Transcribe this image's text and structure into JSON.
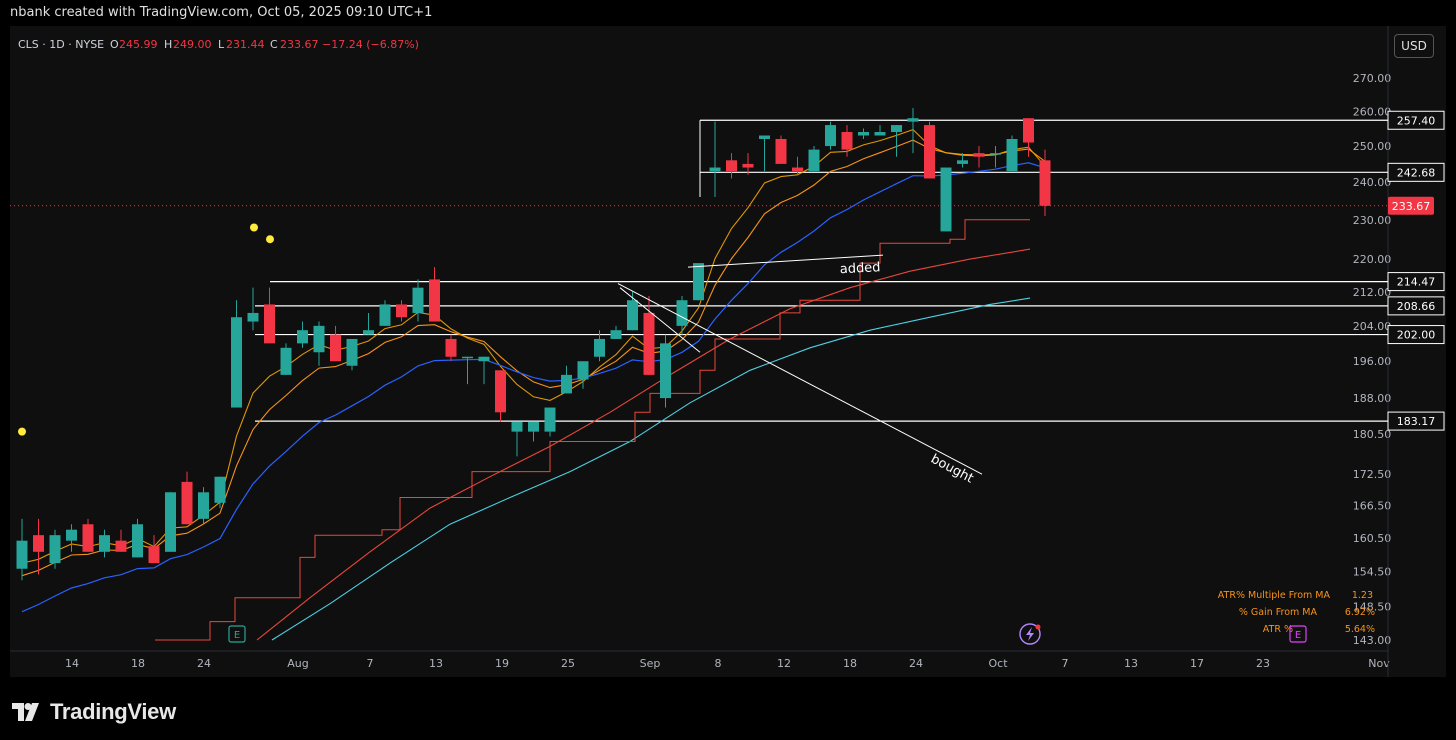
{
  "header": {
    "attribution": "nbank created with TradingView.com, Oct 05, 2025 09:10 UTC+1"
  },
  "legend": {
    "symbol": "CLS · 1D · NYSE",
    "o_label": "O",
    "o_value": "245.99",
    "h_label": "H",
    "h_value": "249.00",
    "l_label": "L",
    "l_value": "231.44",
    "c_label": "C",
    "c_value": "233.67",
    "change": "−17.24 (−6.87%)"
  },
  "currency_button": "USD",
  "footer": {
    "logo_text": "TradingView"
  },
  "colors": {
    "up": "#26a69a",
    "down": "#f23645",
    "ema_fast": "#f7a600",
    "ema_mid": "#f7931a",
    "sma": "#2962ff",
    "red_line": "#e8473b",
    "cyan_line": "#4dd0e1",
    "stop_line": "#e8473b",
    "yellow_dot": "#ffeb3b",
    "bg": "#0f0f0f"
  },
  "chart_data": {
    "type": "candlestick",
    "x_ticks": [
      "14",
      "18",
      "24",
      "Aug",
      "7",
      "13",
      "19",
      "25",
      "Sep",
      "8",
      "12",
      "18",
      "24",
      "Oct",
      "7",
      "13",
      "17",
      "23",
      "Nov"
    ],
    "y_ticks": [
      "270.00",
      "260.00",
      "250.00",
      "240.00",
      "230.00",
      "220.00",
      "212.00",
      "204.00",
      "196.00",
      "188.00",
      "180.50",
      "172.50",
      "166.50",
      "160.50",
      "154.50",
      "148.50",
      "143.00"
    ],
    "y_scale": "log",
    "last_price": "233.67",
    "horizontal_levels": [
      {
        "value": 257.4,
        "label": "257.40"
      },
      {
        "value": 242.68,
        "label": "242.68"
      },
      {
        "value": 214.47,
        "label": "214.47"
      },
      {
        "value": 208.66,
        "label": "208.66"
      },
      {
        "value": 202.0,
        "label": "202.00"
      },
      {
        "value": 183.17,
        "label": "183.17"
      }
    ],
    "annotations": [
      {
        "text": "added"
      },
      {
        "text": "bought"
      }
    ],
    "candles": [
      {
        "o": 155,
        "h": 164,
        "l": 153,
        "c": 160
      },
      {
        "o": 161,
        "h": 164,
        "l": 154,
        "c": 158
      },
      {
        "o": 156,
        "h": 162,
        "l": 155,
        "c": 161
      },
      {
        "o": 160,
        "h": 163,
        "l": 158,
        "c": 162
      },
      {
        "o": 163,
        "h": 164,
        "l": 158,
        "c": 158
      },
      {
        "o": 158,
        "h": 162,
        "l": 157,
        "c": 161
      },
      {
        "o": 160,
        "h": 162,
        "l": 158,
        "c": 158
      },
      {
        "o": 157,
        "h": 164,
        "l": 157,
        "c": 163
      },
      {
        "o": 159,
        "h": 161,
        "l": 156,
        "c": 156
      },
      {
        "o": 158,
        "h": 169,
        "l": 158,
        "c": 169
      },
      {
        "o": 171,
        "h": 173,
        "l": 163,
        "c": 163
      },
      {
        "o": 164,
        "h": 170,
        "l": 163,
        "c": 169
      },
      {
        "o": 167,
        "h": 172,
        "l": 166,
        "c": 172
      },
      {
        "o": 186,
        "h": 210,
        "l": 186,
        "c": 206
      },
      {
        "o": 205,
        "h": 213,
        "l": 203,
        "c": 207
      },
      {
        "o": 209,
        "h": 213,
        "l": 200,
        "c": 200
      },
      {
        "o": 193,
        "h": 200,
        "l": 193,
        "c": 199
      },
      {
        "o": 200,
        "h": 205,
        "l": 199,
        "c": 203
      },
      {
        "o": 198,
        "h": 205,
        "l": 195,
        "c": 204
      },
      {
        "o": 202,
        "h": 204,
        "l": 196,
        "c": 196
      },
      {
        "o": 195,
        "h": 201,
        "l": 194,
        "c": 201
      },
      {
        "o": 202,
        "h": 207,
        "l": 202,
        "c": 203
      },
      {
        "o": 204,
        "h": 210,
        "l": 204,
        "c": 209
      },
      {
        "o": 209,
        "h": 210,
        "l": 205,
        "c": 206
      },
      {
        "o": 207,
        "h": 215,
        "l": 205,
        "c": 213
      },
      {
        "o": 215,
        "h": 218,
        "l": 205,
        "c": 205
      },
      {
        "o": 201,
        "h": 202,
        "l": 196,
        "c": 197
      },
      {
        "o": 197,
        "h": 197,
        "l": 191,
        "c": 197
      },
      {
        "o": 196,
        "h": 197,
        "l": 191,
        "c": 197
      },
      {
        "o": 194,
        "h": 194,
        "l": 183,
        "c": 185
      },
      {
        "o": 181,
        "h": 183,
        "l": 176,
        "c": 183
      },
      {
        "o": 181,
        "h": 183,
        "l": 179,
        "c": 183
      },
      {
        "o": 181,
        "h": 186,
        "l": 180,
        "c": 186
      },
      {
        "o": 189,
        "h": 195,
        "l": 189,
        "c": 193
      },
      {
        "o": 192,
        "h": 196,
        "l": 190,
        "c": 196
      },
      {
        "o": 197,
        "h": 203,
        "l": 196,
        "c": 201
      },
      {
        "o": 201,
        "h": 204,
        "l": 201,
        "c": 203
      },
      {
        "o": 203,
        "h": 212,
        "l": 203,
        "c": 210
      },
      {
        "o": 207,
        "h": 211,
        "l": 193,
        "c": 193
      },
      {
        "o": 188,
        "h": 202,
        "l": 186,
        "c": 200
      },
      {
        "o": 204,
        "h": 211,
        "l": 202,
        "c": 210
      },
      {
        "o": 210,
        "h": 219,
        "l": 210,
        "c": 219
      },
      {
        "o": 243,
        "h": 257,
        "l": 236,
        "c": 244
      },
      {
        "o": 246,
        "h": 248,
        "l": 241,
        "c": 243
      },
      {
        "o": 245,
        "h": 248,
        "l": 242,
        "c": 244
      },
      {
        "o": 252,
        "h": 253,
        "l": 243,
        "c": 253
      },
      {
        "o": 252,
        "h": 253,
        "l": 245,
        "c": 245
      },
      {
        "o": 244,
        "h": 247,
        "l": 242,
        "c": 243
      },
      {
        "o": 243,
        "h": 250,
        "l": 243,
        "c": 249
      },
      {
        "o": 250,
        "h": 257,
        "l": 249,
        "c": 256
      },
      {
        "o": 254,
        "h": 256,
        "l": 247,
        "c": 249
      },
      {
        "o": 253,
        "h": 255,
        "l": 252,
        "c": 254
      },
      {
        "o": 253,
        "h": 256,
        "l": 253,
        "c": 254
      },
      {
        "o": 254,
        "h": 256,
        "l": 247,
        "c": 256
      },
      {
        "o": 257,
        "h": 261,
        "l": 248,
        "c": 258
      },
      {
        "o": 256,
        "h": 257,
        "l": 241,
        "c": 241
      },
      {
        "o": 227,
        "h": 243,
        "l": 227,
        "c": 244
      },
      {
        "o": 245,
        "h": 248,
        "l": 244,
        "c": 246
      },
      {
        "o": 248,
        "h": 250,
        "l": 244,
        "c": 247
      },
      {
        "o": 248,
        "h": 250,
        "l": 244,
        "c": 248
      },
      {
        "o": 243,
        "h": 253,
        "l": 243,
        "c": 252
      },
      {
        "o": 258,
        "h": 258,
        "l": 247,
        "c": 251
      },
      {
        "o": 246,
        "h": 249,
        "l": 231,
        "c": 233.67
      }
    ]
  },
  "indicator_panel": {
    "rows": [
      {
        "label": "ATR% Multiple From MA",
        "value": "1.23"
      },
      {
        "label": "% Gain From MA",
        "value": "6.92%"
      },
      {
        "label": "ATR %",
        "value": "5.64%"
      }
    ]
  },
  "markers": {
    "earnings_label": "E"
  }
}
